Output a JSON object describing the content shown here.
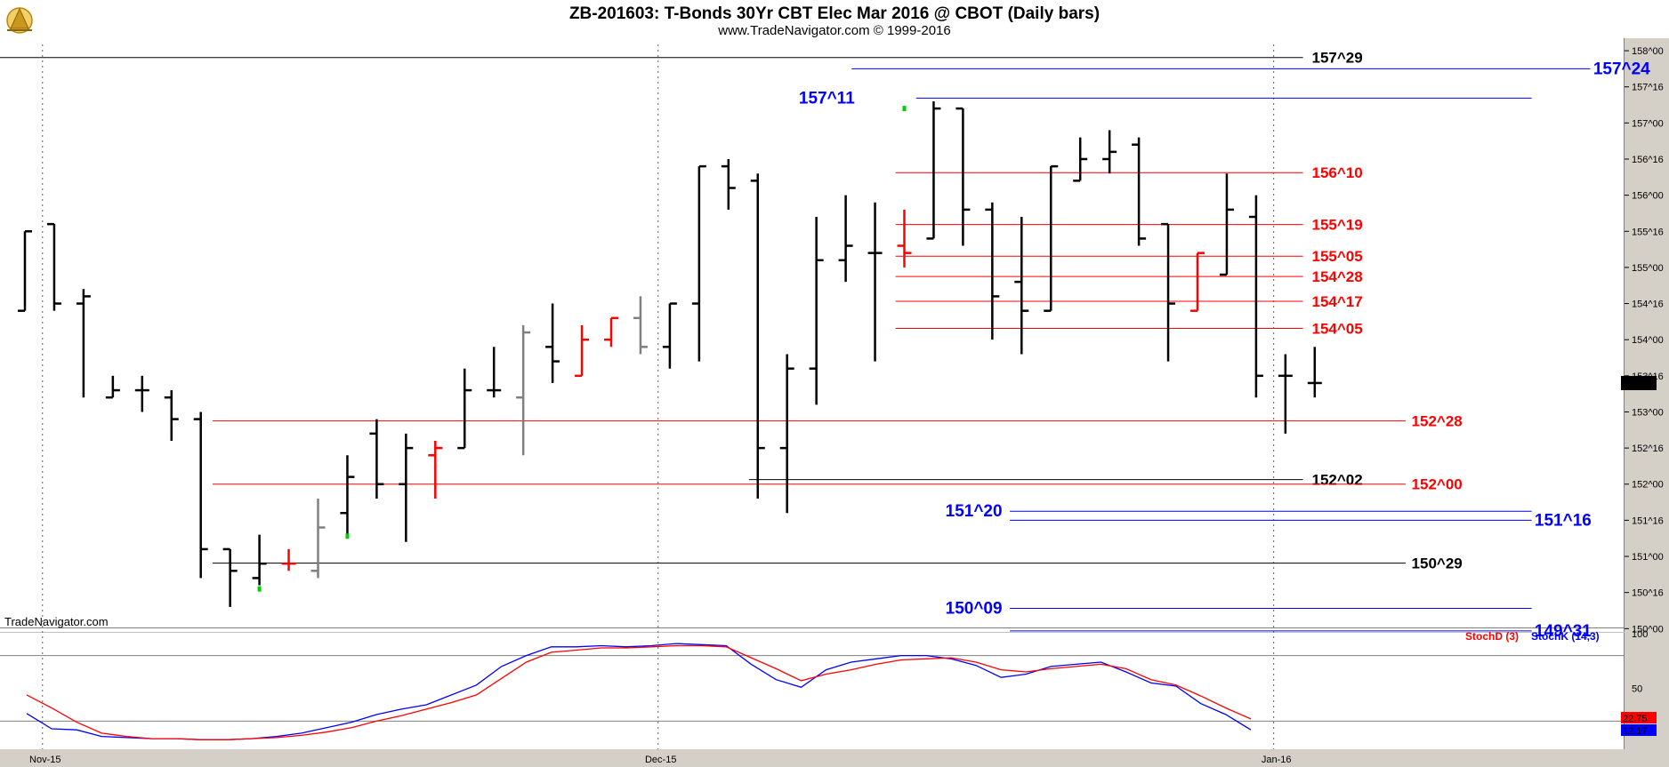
{
  "header": {
    "title": "ZB-201603:  T-Bonds 30Yr CBT Elec Mar 2016 @ CBOT  (Daily bars)",
    "subtitle": "www.TradeNavigator.com © 1999-2016",
    "watermark": "TradeNavigator.com"
  },
  "colors": {
    "background": "#ffffff",
    "axis_panel": "#d4d0c8",
    "bar": "#000000",
    "red": "#ff0000",
    "blue": "#0000ff",
    "gray": "#808080",
    "green": "#00cc00"
  },
  "chart_data": [
    {
      "type": "ohlc",
      "title": "ZB-201603:  T-Bonds 30Yr CBT Elec Mar 2016 @ CBOT  (Daily bars)",
      "price_format": "points^32nds",
      "y_ticks": [
        "158^00",
        "157^16",
        "157^00",
        "156^16",
        "156^00",
        "155^16",
        "155^00",
        "154^16",
        "154^00",
        "153^16",
        "153^00",
        "152^16",
        "152^00",
        "151^16",
        "151^00",
        "150^16",
        "150^00"
      ],
      "ylim": [
        149.93,
        158.05
      ],
      "x_ticks": [
        {
          "label": "Nov-15",
          "index": 0.6
        },
        {
          "label": "Dec-15",
          "index": 21.6
        },
        {
          "label": "Jan-16",
          "index": 42.6
        }
      ],
      "last_price_label": "153^14",
      "bars": [
        {
          "o": 154.4,
          "h": 155.5,
          "l": 154.4,
          "c": 155.5,
          "color": "black"
        },
        {
          "o": 155.6,
          "h": 155.6,
          "l": 154.4,
          "c": 154.5,
          "color": "black"
        },
        {
          "o": 154.5,
          "h": 154.7,
          "l": 153.2,
          "c": 154.6,
          "color": "black"
        },
        {
          "o": 153.2,
          "h": 153.5,
          "l": 153.2,
          "c": 153.3,
          "color": "black"
        },
        {
          "o": 153.3,
          "h": 153.5,
          "l": 153.0,
          "c": 153.3,
          "color": "black"
        },
        {
          "o": 153.2,
          "h": 153.3,
          "l": 152.6,
          "c": 152.9,
          "color": "black"
        },
        {
          "o": 152.9,
          "h": 153.0,
          "l": 150.7,
          "c": 151.1,
          "color": "black"
        },
        {
          "o": 151.1,
          "h": 151.1,
          "l": 150.3,
          "c": 150.8,
          "color": "black"
        },
        {
          "o": 150.7,
          "h": 151.3,
          "l": 150.6,
          "c": 150.9,
          "color": "black"
        },
        {
          "o": 150.9,
          "h": 151.1,
          "l": 150.8,
          "c": 150.9,
          "color": "red"
        },
        {
          "o": 150.8,
          "h": 151.8,
          "l": 150.7,
          "c": 151.4,
          "color": "gray"
        },
        {
          "o": 151.6,
          "h": 152.4,
          "l": 151.3,
          "c": 152.1,
          "color": "black"
        },
        {
          "o": 152.7,
          "h": 152.9,
          "l": 151.8,
          "c": 152.0,
          "color": "black"
        },
        {
          "o": 152.0,
          "h": 152.7,
          "l": 151.2,
          "c": 152.5,
          "color": "black"
        },
        {
          "o": 152.4,
          "h": 152.6,
          "l": 151.8,
          "c": 152.5,
          "color": "red"
        },
        {
          "o": 152.5,
          "h": 153.6,
          "l": 152.5,
          "c": 153.3,
          "color": "black"
        },
        {
          "o": 153.3,
          "h": 153.9,
          "l": 153.2,
          "c": 153.3,
          "color": "black"
        },
        {
          "o": 153.2,
          "h": 154.2,
          "l": 152.4,
          "c": 154.1,
          "color": "gray"
        },
        {
          "o": 153.9,
          "h": 154.5,
          "l": 153.4,
          "c": 153.7,
          "color": "black"
        },
        {
          "o": 153.5,
          "h": 154.2,
          "l": 153.5,
          "c": 154.0,
          "color": "red"
        },
        {
          "o": 154.0,
          "h": 154.3,
          "l": 153.9,
          "c": 154.3,
          "color": "red"
        },
        {
          "o": 154.3,
          "h": 154.6,
          "l": 153.8,
          "c": 153.9,
          "color": "gray"
        },
        {
          "o": 153.9,
          "h": 154.5,
          "l": 153.6,
          "c": 154.5,
          "color": "black"
        },
        {
          "o": 154.5,
          "h": 156.4,
          "l": 153.7,
          "c": 156.4,
          "color": "black"
        },
        {
          "o": 156.4,
          "h": 156.5,
          "l": 155.8,
          "c": 156.1,
          "color": "black"
        },
        {
          "o": 156.2,
          "h": 156.3,
          "l": 151.8,
          "c": 152.5,
          "color": "black"
        },
        {
          "o": 152.5,
          "h": 153.8,
          "l": 151.6,
          "c": 153.6,
          "color": "black"
        },
        {
          "o": 153.6,
          "h": 155.7,
          "l": 153.1,
          "c": 155.1,
          "color": "black"
        },
        {
          "o": 155.1,
          "h": 156.0,
          "l": 154.8,
          "c": 155.3,
          "color": "black"
        },
        {
          "o": 155.2,
          "h": 155.9,
          "l": 153.7,
          "c": 155.2,
          "color": "black"
        },
        {
          "o": 155.3,
          "h": 155.8,
          "l": 155.0,
          "c": 155.2,
          "color": "red"
        },
        {
          "o": 155.4,
          "h": 157.3,
          "l": 155.4,
          "c": 157.2,
          "color": "black"
        },
        {
          "o": 157.2,
          "h": 157.2,
          "l": 155.3,
          "c": 155.8,
          "color": "black"
        },
        {
          "o": 155.8,
          "h": 155.9,
          "l": 154.0,
          "c": 154.6,
          "color": "black"
        },
        {
          "o": 154.8,
          "h": 155.7,
          "l": 153.8,
          "c": 154.4,
          "color": "black"
        },
        {
          "o": 154.4,
          "h": 156.4,
          "l": 154.4,
          "c": 156.4,
          "color": "black"
        },
        {
          "o": 156.2,
          "h": 156.8,
          "l": 156.2,
          "c": 156.5,
          "color": "black"
        },
        {
          "o": 156.5,
          "h": 156.9,
          "l": 156.3,
          "c": 156.6,
          "color": "black"
        },
        {
          "o": 156.7,
          "h": 156.8,
          "l": 155.3,
          "c": 155.4,
          "color": "black"
        },
        {
          "o": 155.6,
          "h": 155.6,
          "l": 153.7,
          "c": 154.5,
          "color": "black"
        },
        {
          "o": 154.4,
          "h": 155.2,
          "l": 154.4,
          "c": 155.2,
          "color": "red"
        },
        {
          "o": 154.9,
          "h": 156.3,
          "l": 154.9,
          "c": 155.8,
          "color": "black"
        },
        {
          "o": 155.7,
          "h": 156.0,
          "l": 153.2,
          "c": 153.5,
          "color": "black"
        },
        {
          "o": 153.5,
          "h": 153.8,
          "l": 152.7,
          "c": 153.5,
          "color": "black"
        },
        {
          "o": 153.4,
          "h": 153.9,
          "l": 153.2,
          "c": 153.4,
          "color": "black"
        }
      ],
      "green_marks": [
        {
          "index": 8,
          "price": 150.55
        },
        {
          "index": 11,
          "price": 151.28
        },
        {
          "index": 30,
          "price": 157.2
        }
      ],
      "levels": [
        {
          "price": 157.906,
          "label": "157^29",
          "color": "black",
          "from_index": -1.7,
          "to_index": 43.6,
          "label_index": 43.9
        },
        {
          "price": 157.75,
          "label": "157^24",
          "color": "blue",
          "from_index": 28.2,
          "to_index": 53.4,
          "label_index": 53.5
        },
        {
          "price": 157.344,
          "label": "157^11",
          "color": "blue",
          "from_index": 30.4,
          "to_index": 51.4,
          "label_index": 26.4
        },
        {
          "price": 156.3125,
          "label": "156^10",
          "color": "red",
          "from_index": 29.7,
          "to_index": 43.6,
          "label_index": 43.9
        },
        {
          "price": 155.594,
          "label": "155^19",
          "color": "red",
          "from_index": 29.7,
          "to_index": 43.6,
          "label_index": 43.9
        },
        {
          "price": 155.156,
          "label": "155^05",
          "color": "red",
          "from_index": 29.7,
          "to_index": 43.6,
          "label_index": 43.9
        },
        {
          "price": 154.875,
          "label": "154^28",
          "color": "red",
          "from_index": 29.7,
          "to_index": 43.6,
          "label_index": 43.9
        },
        {
          "price": 154.531,
          "label": "154^17",
          "color": "red",
          "from_index": 29.7,
          "to_index": 43.6,
          "label_index": 43.9
        },
        {
          "price": 154.156,
          "label": "154^05",
          "color": "red",
          "from_index": 29.7,
          "to_index": 43.6,
          "label_index": 43.9
        },
        {
          "price": 152.875,
          "label": "152^28",
          "color": "red",
          "from_index": 6.4,
          "to_index": 47.1,
          "label_index": 47.3
        },
        {
          "price": 152.0625,
          "label": "152^02",
          "color": "black",
          "from_index": 24.7,
          "to_index": 43.6,
          "label_index": 43.9
        },
        {
          "price": 152.0,
          "label": "152^00",
          "color": "red",
          "from_index": 6.4,
          "to_index": 47.1,
          "label_index": 47.3
        },
        {
          "price": 151.625,
          "label": "151^20",
          "color": "blue",
          "from_index": 33.6,
          "to_index": 51.4,
          "label_index": 31.4
        },
        {
          "price": 151.5,
          "label": "151^16",
          "color": "blue",
          "from_index": 33.6,
          "to_index": 51.4,
          "label_index": 51.5
        },
        {
          "price": 150.906,
          "label": "150^29",
          "color": "black",
          "from_index": 6.4,
          "to_index": 47.1,
          "label_index": 47.3
        },
        {
          "price": 150.281,
          "label": "150^09",
          "color": "blue",
          "from_index": 33.6,
          "to_index": 51.4,
          "label_index": 31.4
        },
        {
          "price": 149.969,
          "label": "149^31",
          "color": "blue",
          "from_index": 33.6,
          "to_index": 51.4,
          "label_index": 51.5
        }
      ]
    },
    {
      "type": "line",
      "title": "",
      "ylim": [
        0,
        100
      ],
      "y_ticks": [
        "100",
        "50"
      ],
      "reference_lines": [
        80,
        20
      ],
      "legend": [
        {
          "label": "StochD (3)",
          "color": "red"
        },
        {
          "label": "StochK (14,3)",
          "color": "blue"
        }
      ],
      "last_values": {
        "stochD": "22.75",
        "stochK": "12.17"
      },
      "series": [
        {
          "name": "StochK (14,3)",
          "color": "blue",
          "values": [
            27,
            13,
            12,
            6,
            5,
            4,
            4,
            3,
            3,
            4,
            6,
            9,
            14,
            19,
            26,
            31,
            35,
            44,
            53,
            70,
            80,
            88,
            88,
            89,
            88,
            89,
            91,
            90,
            89,
            72,
            58,
            51,
            67,
            74,
            77,
            80,
            80,
            77,
            71,
            60,
            63,
            70,
            72,
            74,
            65,
            55,
            52,
            36,
            26,
            12
          ]
        },
        {
          "name": "StochD (3)",
          "color": "red",
          "values": [
            44,
            32,
            19,
            9,
            6,
            4,
            4,
            3,
            3,
            4,
            5,
            7,
            10,
            14,
            20,
            25,
            31,
            37,
            44,
            59,
            74,
            83,
            85,
            87,
            87,
            88,
            89,
            89,
            88,
            78,
            68,
            57,
            63,
            67,
            72,
            76,
            77,
            78,
            74,
            67,
            65,
            68,
            70,
            72,
            68,
            58,
            53,
            43,
            32,
            22
          ]
        }
      ]
    }
  ]
}
